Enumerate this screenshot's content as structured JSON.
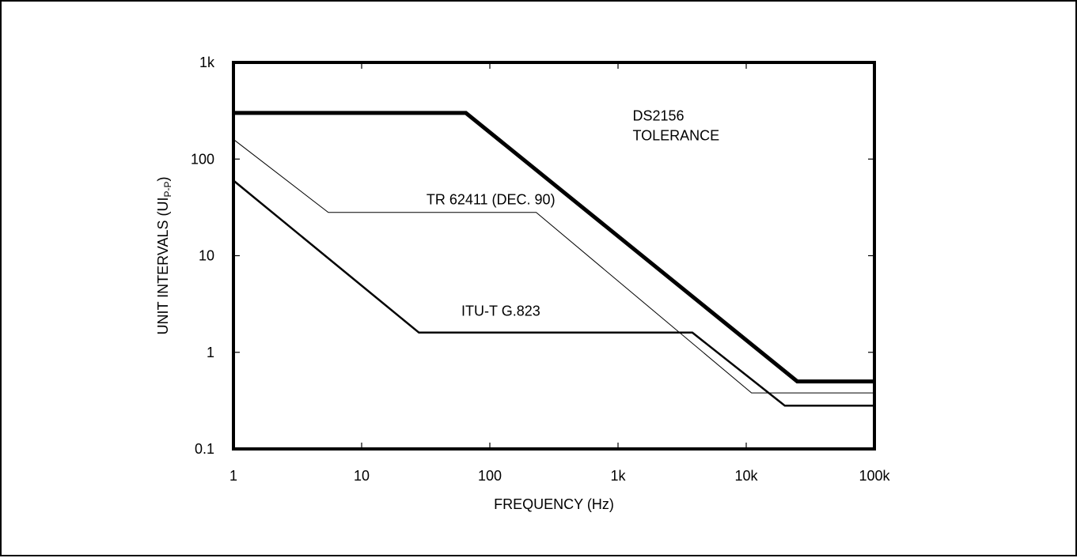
{
  "chart_data": {
    "type": "line",
    "xlabel": "FREQUENCY (Hz)",
    "ylabel_main": "UNIT INTERVALS (UI",
    "ylabel_sub": "P-P",
    "ylabel_close": ")",
    "x_scale": "log",
    "y_scale": "log",
    "xlim": [
      1,
      100000
    ],
    "ylim": [
      0.1,
      1000
    ],
    "x_ticks": [
      {
        "value": 1,
        "label": "1"
      },
      {
        "value": 10,
        "label": "10"
      },
      {
        "value": 100,
        "label": "100"
      },
      {
        "value": 1000,
        "label": "1k"
      },
      {
        "value": 10000,
        "label": "10k"
      },
      {
        "value": 100000,
        "label": "100k"
      }
    ],
    "y_ticks": [
      {
        "value": 0.1,
        "label": "0.1"
      },
      {
        "value": 1,
        "label": "1"
      },
      {
        "value": 10,
        "label": "10"
      },
      {
        "value": 100,
        "label": "100"
      },
      {
        "value": 1000,
        "label": "1k"
      }
    ],
    "grid": false,
    "series": [
      {
        "id": "ds2156",
        "label_lines": [
          "DS2156",
          "TOLERANCE"
        ],
        "label_at": {
          "x": 1300,
          "y": 250
        },
        "weight": "heavy",
        "points": [
          [
            1,
            300
          ],
          [
            65,
            300
          ],
          [
            25000,
            0.5
          ],
          [
            100000,
            0.5
          ]
        ]
      },
      {
        "id": "tr62411",
        "label_lines": [
          "TR 62411 (DEC. 90)"
        ],
        "label_at": {
          "x": 32,
          "y": 34
        },
        "weight": "thin",
        "points": [
          [
            1,
            160
          ],
          [
            5.5,
            28
          ],
          [
            230,
            28
          ],
          [
            11000,
            0.38
          ],
          [
            100000,
            0.38
          ]
        ]
      },
      {
        "id": "g823",
        "label_lines": [
          "ITU-T G.823"
        ],
        "label_at": {
          "x": 60,
          "y": 2.4
        },
        "weight": "medium",
        "points": [
          [
            1,
            60
          ],
          [
            28,
            1.6
          ],
          [
            3800,
            1.6
          ],
          [
            20000,
            0.28
          ],
          [
            100000,
            0.28
          ]
        ]
      }
    ]
  }
}
